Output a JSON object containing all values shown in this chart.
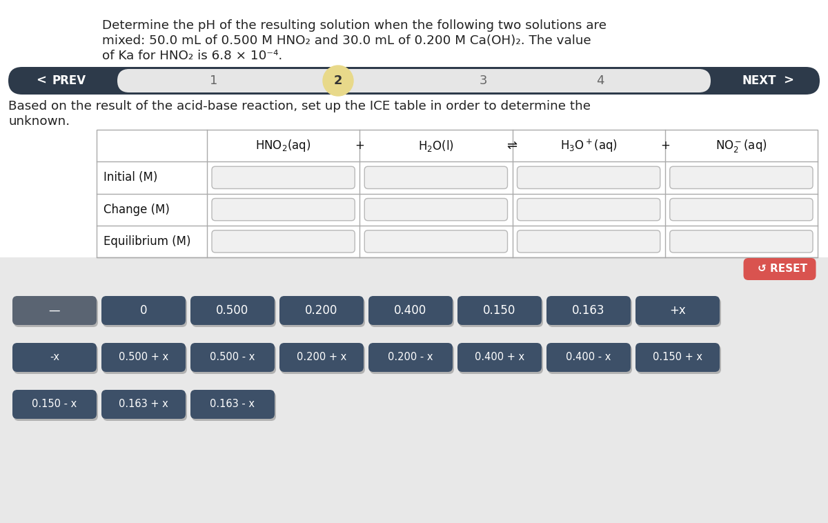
{
  "title_line1": "Determine the pH of the resulting solution when the following two solutions are",
  "title_line2": "mixed: 50.0 mL of 0.500 M HNO₂ and 30.0 mL of 0.200 M Ca(OH)₂. The value",
  "title_line3": "of Ka for HNO₂ is 6.8 × 10⁻⁴.",
  "nav_label_prev": "PREV",
  "nav_label_next": "NEXT",
  "nav_steps": [
    "1",
    "2",
    "3",
    "4"
  ],
  "nav_active": 1,
  "instruction_line1": "Based on the result of the acid-base reaction, set up the ICE table in order to determine the",
  "instruction_line2": "unknown.",
  "row_labels": [
    "Initial (M)",
    "Change (M)",
    "Equilibrium (M)"
  ],
  "nav_dark_color": "#2d3a4a",
  "nav_light_color": "#e6e6e6",
  "nav_active_color": "#e8d98a",
  "button_dark": "#3d5068",
  "button_gray": "#5a6472",
  "reset_color": "#d9534f",
  "row1_buttons": [
    "—",
    "0",
    "0.500",
    "0.200",
    "0.400",
    "0.150",
    "0.163",
    "+x"
  ],
  "row2_buttons": [
    "-x",
    "0.500 + x",
    "0.500 - x",
    "0.200 + x",
    "0.200 - x",
    "0.400 + x",
    "0.400 - x",
    "0.150 + x"
  ],
  "row3_buttons": [
    "0.150 - x",
    "0.163 + x",
    "0.163 - x"
  ]
}
